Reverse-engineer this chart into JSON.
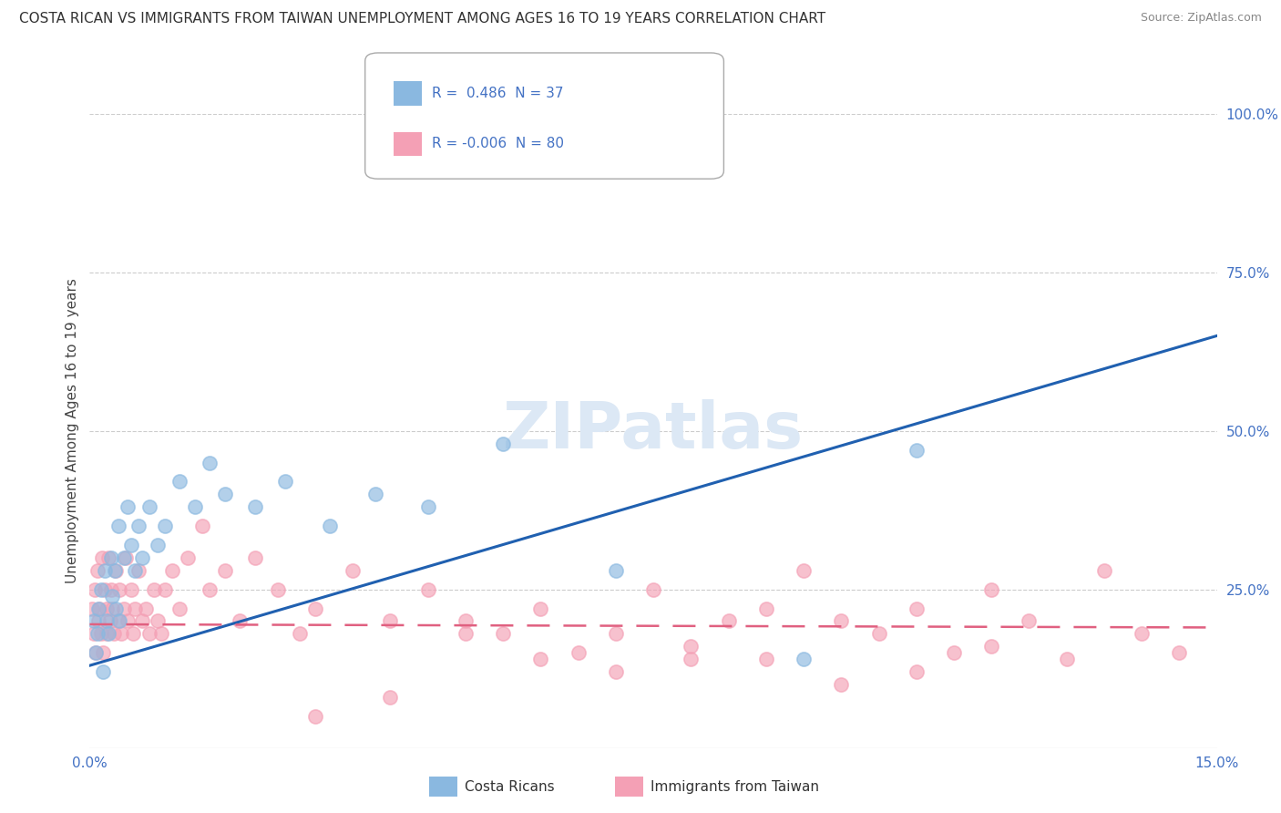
{
  "title": "COSTA RICAN VS IMMIGRANTS FROM TAIWAN UNEMPLOYMENT AMONG AGES 16 TO 19 YEARS CORRELATION CHART",
  "source_text": "Source: ZipAtlas.com",
  "ylabel": "Unemployment Among Ages 16 to 19 years",
  "xlim": [
    0.0,
    15.0
  ],
  "ylim": [
    0.0,
    100.0
  ],
  "blue_color": "#8ab8e0",
  "pink_color": "#f4a0b5",
  "blue_line_color": "#2060b0",
  "pink_line_color": "#e06080",
  "watermark_text": "ZIPatlas",
  "watermark_color": "#dce8f5",
  "cr_R": 0.486,
  "cr_N": 37,
  "tw_R": -0.006,
  "tw_N": 80,
  "blue_line_x0": 0.0,
  "blue_line_y0": 13.0,
  "blue_line_x1": 15.0,
  "blue_line_y1": 65.0,
  "pink_line_x0": 0.0,
  "pink_line_y0": 19.5,
  "pink_line_x1": 15.0,
  "pink_line_y1": 19.0,
  "costa_rican_x": [
    0.05,
    0.08,
    0.1,
    0.12,
    0.15,
    0.18,
    0.2,
    0.22,
    0.25,
    0.28,
    0.3,
    0.33,
    0.35,
    0.38,
    0.4,
    0.45,
    0.5,
    0.55,
    0.6,
    0.65,
    0.7,
    0.8,
    0.9,
    1.0,
    1.2,
    1.4,
    1.6,
    1.8,
    2.2,
    2.6,
    3.2,
    3.8,
    4.5,
    5.5,
    7.0,
    9.5,
    11.0
  ],
  "costa_rican_y": [
    20,
    15,
    18,
    22,
    25,
    12,
    28,
    20,
    18,
    30,
    24,
    28,
    22,
    35,
    20,
    30,
    38,
    32,
    28,
    35,
    30,
    38,
    32,
    35,
    42,
    38,
    45,
    40,
    38,
    42,
    35,
    40,
    38,
    48,
    28,
    14,
    47
  ],
  "taiwan_x": [
    0.03,
    0.05,
    0.07,
    0.08,
    0.1,
    0.12,
    0.13,
    0.15,
    0.17,
    0.18,
    0.2,
    0.22,
    0.23,
    0.25,
    0.27,
    0.28,
    0.3,
    0.32,
    0.35,
    0.38,
    0.4,
    0.42,
    0.45,
    0.48,
    0.5,
    0.55,
    0.58,
    0.6,
    0.65,
    0.7,
    0.75,
    0.8,
    0.85,
    0.9,
    0.95,
    1.0,
    1.1,
    1.2,
    1.3,
    1.5,
    1.6,
    1.8,
    2.0,
    2.2,
    2.5,
    2.8,
    3.0,
    3.5,
    4.0,
    4.5,
    5.0,
    5.5,
    6.0,
    6.5,
    7.0,
    7.5,
    8.0,
    8.5,
    9.0,
    9.5,
    10.0,
    10.5,
    11.0,
    11.5,
    12.0,
    12.5,
    13.0,
    13.5,
    14.0,
    14.5,
    3.0,
    4.0,
    5.0,
    6.0,
    7.0,
    8.0,
    9.0,
    10.0,
    11.0,
    12.0
  ],
  "taiwan_y": [
    22,
    18,
    25,
    15,
    28,
    20,
    22,
    18,
    30,
    15,
    25,
    22,
    18,
    30,
    20,
    25,
    22,
    18,
    28,
    20,
    25,
    18,
    22,
    30,
    20,
    25,
    18,
    22,
    28,
    20,
    22,
    18,
    25,
    20,
    18,
    25,
    28,
    22,
    30,
    35,
    25,
    28,
    20,
    30,
    25,
    18,
    22,
    28,
    20,
    25,
    20,
    18,
    22,
    15,
    18,
    25,
    14,
    20,
    22,
    28,
    20,
    18,
    22,
    15,
    25,
    20,
    14,
    28,
    18,
    15,
    5,
    8,
    18,
    14,
    12,
    16,
    14,
    10,
    12,
    16
  ]
}
